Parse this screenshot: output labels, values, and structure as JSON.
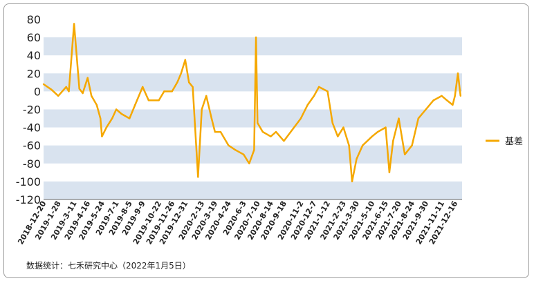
{
  "source_note": "数据统计：七禾研究中心（2022年1月5日）",
  "chart_data": {
    "type": "line",
    "title": "",
    "xlabel": "",
    "ylabel": "",
    "ylim": [
      -120,
      80
    ],
    "yticks": [
      80,
      60,
      40,
      20,
      0,
      -20,
      -40,
      -60,
      -80,
      -100,
      -120
    ],
    "grid": "alternating horizontal bands",
    "legend_position": "right",
    "colors": {
      "series": "#F5A800",
      "band": "#D9E3EF"
    },
    "x_tick_labels": [
      "2018-12-20",
      "2019-1-28",
      "2019-3-11",
      "2019-4-16",
      "2019-5-24",
      "2019-7-1",
      "2019-8-5",
      "2019-9-9",
      "2019-10-22",
      "2019-11-26",
      "2019-12-31",
      "2020-2-13",
      "2020-3-19",
      "2020-4-24",
      "2020-6-3",
      "2020-7-10",
      "2020-8-14",
      "2020-9-18",
      "2020-11-2",
      "2020-12-7",
      "2021-1-12",
      "2021-2-23",
      "2021-3-30",
      "2021-5-10",
      "2021-6-15",
      "2021-7-20",
      "2021-8-24",
      "2021-9-30",
      "2021-11-11",
      "2021-12-16"
    ],
    "series": [
      {
        "name": "基差",
        "x": [
          "2018-12-20",
          "2019-1-10",
          "2019-1-28",
          "2019-2-18",
          "2019-2-25",
          "2019-3-11",
          "2019-3-25",
          "2019-4-3",
          "2019-4-16",
          "2019-4-26",
          "2019-5-10",
          "2019-5-20",
          "2019-5-24",
          "2019-6-5",
          "2019-6-20",
          "2019-7-1",
          "2019-7-15",
          "2019-8-5",
          "2019-8-20",
          "2019-9-9",
          "2019-9-25",
          "2019-10-22",
          "2019-11-5",
          "2019-11-26",
          "2019-12-10",
          "2019-12-20",
          "2019-12-31",
          "2020-1-10",
          "2020-1-20",
          "2020-2-3",
          "2020-2-13",
          "2020-2-25",
          "2020-3-10",
          "2020-3-19",
          "2020-4-3",
          "2020-4-24",
          "2020-5-12",
          "2020-6-3",
          "2020-6-18",
          "2020-7-1",
          "2020-7-6",
          "2020-7-10",
          "2020-7-24",
          "2020-8-14",
          "2020-8-28",
          "2020-9-18",
          "2020-10-15",
          "2020-11-2",
          "2020-11-20",
          "2020-12-7",
          "2020-12-20",
          "2021-1-12",
          "2021-1-25",
          "2021-2-8",
          "2021-2-23",
          "2021-3-10",
          "2021-3-18",
          "2021-3-30",
          "2021-4-15",
          "2021-5-10",
          "2021-5-25",
          "2021-6-15",
          "2021-6-25",
          "2021-7-5",
          "2021-7-20",
          "2021-8-5",
          "2021-8-24",
          "2021-9-10",
          "2021-9-30",
          "2021-10-20",
          "2021-11-11",
          "2021-11-25",
          "2021-12-10",
          "2021-12-16",
          "2021-12-24",
          "2021-12-31"
        ],
        "values": [
          8,
          2,
          -5,
          5,
          0,
          75,
          3,
          -2,
          15,
          -5,
          -15,
          -30,
          -50,
          -40,
          -30,
          -20,
          -25,
          -30,
          -15,
          5,
          -10,
          -10,
          0,
          0,
          10,
          20,
          35,
          10,
          5,
          -95,
          -20,
          -5,
          -30,
          -45,
          -45,
          -60,
          -65,
          -70,
          -80,
          -65,
          60,
          -35,
          -45,
          -50,
          -45,
          -55,
          -40,
          -30,
          -15,
          -5,
          5,
          0,
          -35,
          -50,
          -40,
          -60,
          -100,
          -75,
          -60,
          -50,
          -45,
          -40,
          -90,
          -55,
          -30,
          -70,
          -60,
          -30,
          -20,
          -10,
          -5,
          -10,
          -15,
          -5,
          20,
          -5
        ]
      }
    ]
  }
}
